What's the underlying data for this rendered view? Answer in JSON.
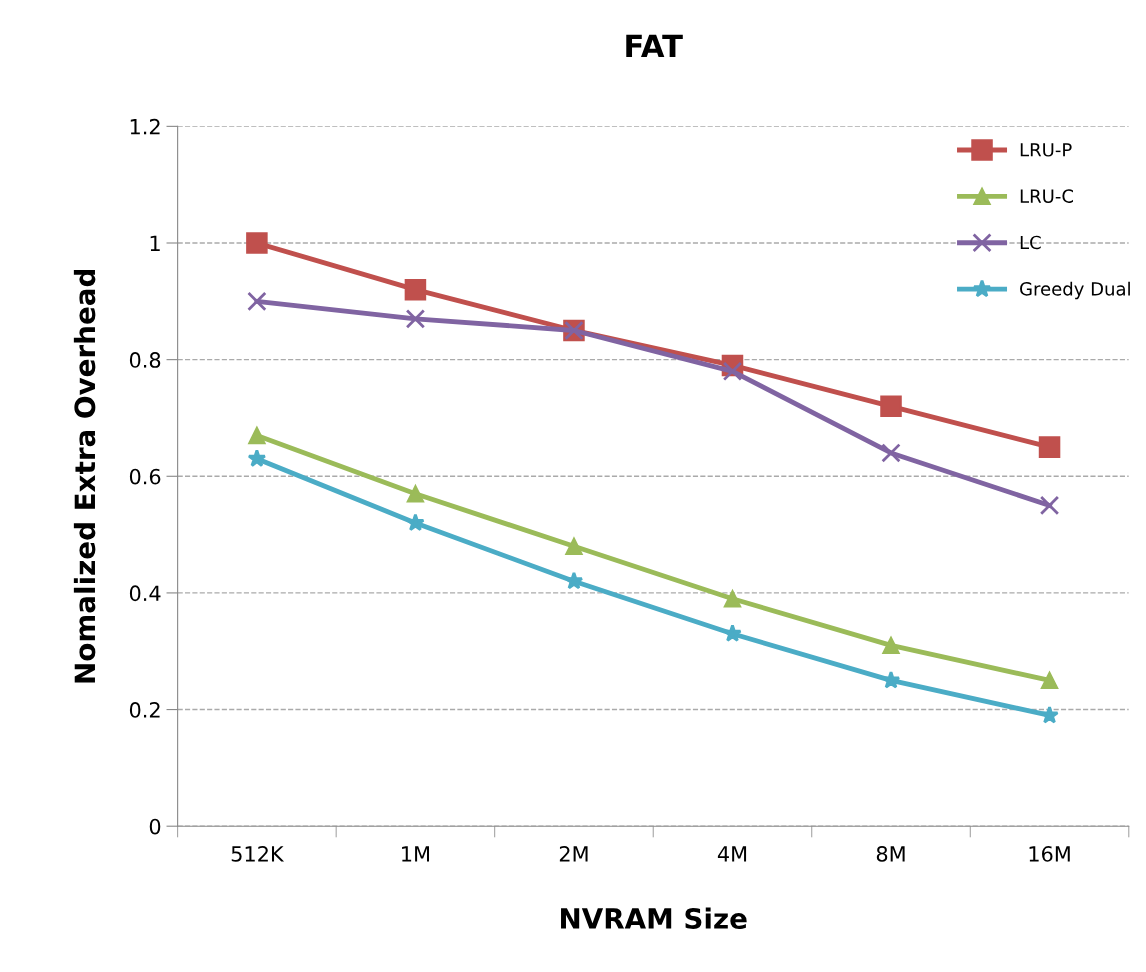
{
  "chart_data": {
    "type": "line",
    "title": "FAT",
    "xlabel": "NVRAM Size",
    "ylabel": "Nomalized Extra Overhead",
    "categories": [
      "512K",
      "1M",
      "2M",
      "4M",
      "8M",
      "16M"
    ],
    "series": [
      {
        "name": "LRU-P",
        "color": "#c0504d",
        "marker": "square",
        "values": [
          1.0,
          0.92,
          0.85,
          0.79,
          0.72,
          0.65
        ]
      },
      {
        "name": "LRU-C",
        "color": "#9bbb59",
        "marker": "triangle",
        "values": [
          0.67,
          0.57,
          0.48,
          0.39,
          0.31,
          0.25
        ]
      },
      {
        "name": "LC",
        "color": "#8064a2",
        "marker": "cross",
        "values": [
          0.9,
          0.87,
          0.85,
          0.78,
          0.64,
          0.55
        ]
      },
      {
        "name": "Greedy Dual",
        "color": "#4bacc6",
        "marker": "star",
        "values": [
          0.63,
          0.52,
          0.42,
          0.33,
          0.25,
          0.19
        ]
      }
    ],
    "ylim": [
      0,
      1.2
    ],
    "yticks": [
      0,
      0.2,
      0.4,
      0.6,
      0.8,
      1,
      1.2
    ],
    "grid": "y",
    "legend": "top right",
    "line_style": "solid"
  }
}
